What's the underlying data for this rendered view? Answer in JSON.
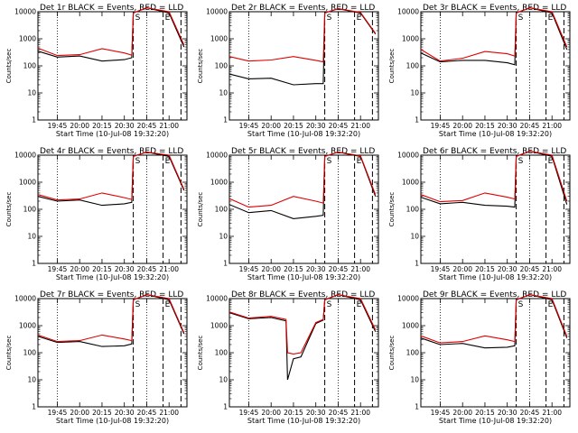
{
  "colors": {
    "events": "#000000",
    "lld": "#dd0000",
    "axes": "#000000"
  },
  "layout_note": "3x3 grid of detector rate panels",
  "common": {
    "xlabel": "Start Time (10-Jul-08 19:32:20)",
    "ylabel": "Counts/sec",
    "x_tick_labels": [
      "19:45",
      "20:00",
      "20:15",
      "20:30",
      "20:45",
      "21:00"
    ],
    "y_tick_labels": [
      "1",
      "10",
      "100",
      "1000",
      "10000"
    ],
    "x_range_minutes": [
      0,
      10,
      100
    ],
    "event_markers": [
      "S",
      "E"
    ]
  },
  "chart_data": [
    {
      "type": "line",
      "title": "Det 1r BLACK = Events, RED = LLD",
      "y_scale": "log",
      "ylim": [
        1,
        10000
      ],
      "x": [
        "19:32",
        "19:45",
        "20:00",
        "20:15",
        "20:30",
        "20:35",
        "20:36",
        "20:45",
        "21:00",
        "21:10"
      ],
      "series": [
        {
          "name": "Events",
          "color": "#000000",
          "values": [
            350,
            210,
            230,
            150,
            170,
            200,
            9000,
            14000,
            9000,
            500
          ]
        },
        {
          "name": "LLD",
          "color": "#dd0000",
          "values": [
            450,
            240,
            260,
            430,
            300,
            250,
            9000,
            14000,
            10000,
            600
          ]
        }
      ]
    },
    {
      "type": "line",
      "title": "Det 2r BLACK = Events, RED = LLD",
      "y_scale": "log",
      "ylim": [
        1,
        10000
      ],
      "x": [
        "19:32",
        "19:45",
        "20:00",
        "20:15",
        "20:30",
        "20:35",
        "20:36",
        "20:45",
        "21:00",
        "21:10"
      ],
      "series": [
        {
          "name": "Events",
          "color": "#000000",
          "values": [
            50,
            33,
            35,
            20,
            22,
            22,
            9000,
            13000,
            9000,
            1500
          ]
        },
        {
          "name": "LLD",
          "color": "#dd0000",
          "values": [
            220,
            150,
            165,
            220,
            160,
            140,
            9000,
            13000,
            9500,
            1600
          ]
        }
      ]
    },
    {
      "type": "line",
      "title": "Det 3r BLACK = Events, RED = LLD",
      "y_scale": "log",
      "ylim": [
        1,
        10000
      ],
      "x": [
        "19:32",
        "19:45",
        "20:00",
        "20:15",
        "20:30",
        "20:35",
        "20:36",
        "20:45",
        "21:00",
        "21:10"
      ],
      "series": [
        {
          "name": "Events",
          "color": "#000000",
          "values": [
            300,
            140,
            160,
            160,
            130,
            110,
            9000,
            14000,
            9000,
            400
          ]
        },
        {
          "name": "LLD",
          "color": "#dd0000",
          "values": [
            400,
            150,
            190,
            340,
            280,
            230,
            9000,
            14000,
            10000,
            500
          ]
        }
      ]
    },
    {
      "type": "line",
      "title": "Det 4r BLACK = Events, RED = LLD",
      "y_scale": "log",
      "ylim": [
        1,
        10000
      ],
      "x": [
        "19:32",
        "19:45",
        "20:00",
        "20:15",
        "20:30",
        "20:35",
        "20:36",
        "20:45",
        "21:00",
        "21:10"
      ],
      "series": [
        {
          "name": "Events",
          "color": "#000000",
          "values": [
            300,
            200,
            220,
            140,
            160,
            180,
            9000,
            13000,
            9000,
            500
          ]
        },
        {
          "name": "LLD",
          "color": "#dd0000",
          "values": [
            350,
            220,
            240,
            400,
            270,
            230,
            9000,
            13000,
            10000,
            550
          ]
        }
      ]
    },
    {
      "type": "line",
      "title": "Det 5r BLACK = Events, RED = LLD",
      "y_scale": "log",
      "ylim": [
        1,
        10000
      ],
      "x": [
        "19:32",
        "19:45",
        "20:00",
        "20:15",
        "20:30",
        "20:35",
        "20:36",
        "20:45",
        "21:00",
        "21:10"
      ],
      "series": [
        {
          "name": "Events",
          "color": "#000000",
          "values": [
            150,
            75,
            90,
            45,
            55,
            60,
            9000,
            13000,
            9000,
            300
          ]
        },
        {
          "name": "LLD",
          "color": "#dd0000",
          "values": [
            250,
            120,
            140,
            300,
            200,
            170,
            9000,
            13000,
            9500,
            350
          ]
        }
      ]
    },
    {
      "type": "line",
      "title": "Det 6r BLACK = Events, RED = LLD",
      "y_scale": "log",
      "ylim": [
        1,
        10000
      ],
      "x": [
        "19:32",
        "19:45",
        "20:00",
        "20:15",
        "20:30",
        "20:35",
        "20:36",
        "20:45",
        "21:00",
        "21:10"
      ],
      "series": [
        {
          "name": "Events",
          "color": "#000000",
          "values": [
            280,
            160,
            180,
            140,
            130,
            120,
            9000,
            14000,
            9000,
            150
          ]
        },
        {
          "name": "LLD",
          "color": "#dd0000",
          "values": [
            350,
            190,
            210,
            400,
            280,
            240,
            9000,
            14000,
            10000,
            200
          ]
        }
      ]
    },
    {
      "type": "line",
      "title": "Det 7r BLACK = Events, RED = LLD",
      "y_scale": "log",
      "ylim": [
        1,
        10000
      ],
      "x": [
        "19:32",
        "19:45",
        "20:00",
        "20:15",
        "20:30",
        "20:35",
        "20:36",
        "20:45",
        "21:00",
        "21:10"
      ],
      "series": [
        {
          "name": "Events",
          "color": "#000000",
          "values": [
            400,
            240,
            260,
            170,
            180,
            210,
            9000,
            14000,
            9000,
            500
          ]
        },
        {
          "name": "LLD",
          "color": "#dd0000",
          "values": [
            450,
            260,
            280,
            450,
            320,
            280,
            9000,
            14000,
            10000,
            550
          ]
        }
      ]
    },
    {
      "type": "line",
      "title": "Det 8r BLACK = Events, RED = LLD",
      "y_scale": "log",
      "ylim": [
        1,
        10000
      ],
      "x": [
        "19:32",
        "19:45",
        "20:00",
        "20:10",
        "20:11",
        "20:15",
        "20:20",
        "20:30",
        "20:35",
        "20:36",
        "20:45",
        "21:00",
        "21:10"
      ],
      "series": [
        {
          "name": "Events",
          "color": "#000000",
          "values": [
            3000,
            1800,
            2000,
            1500,
            10,
            60,
            70,
            1200,
            1600,
            9000,
            14000,
            9000,
            600
          ]
        },
        {
          "name": "LLD",
          "color": "#dd0000",
          "values": [
            3200,
            1900,
            2200,
            1700,
            100,
            90,
            100,
            1300,
            1700,
            9000,
            14000,
            10000,
            700
          ]
        }
      ]
    },
    {
      "type": "line",
      "title": "Det 9r BLACK = Events, RED = LLD",
      "y_scale": "log",
      "ylim": [
        1,
        10000
      ],
      "x": [
        "19:32",
        "19:45",
        "20:00",
        "20:15",
        "20:30",
        "20:35",
        "20:36",
        "20:45",
        "21:00",
        "21:10"
      ],
      "series": [
        {
          "name": "Events",
          "color": "#000000",
          "values": [
            350,
            200,
            220,
            150,
            160,
            180,
            9000,
            14000,
            9000,
            350
          ]
        },
        {
          "name": "LLD",
          "color": "#dd0000",
          "values": [
            420,
            230,
            260,
            420,
            300,
            260,
            9000,
            14000,
            10000,
            400
          ]
        }
      ]
    }
  ]
}
